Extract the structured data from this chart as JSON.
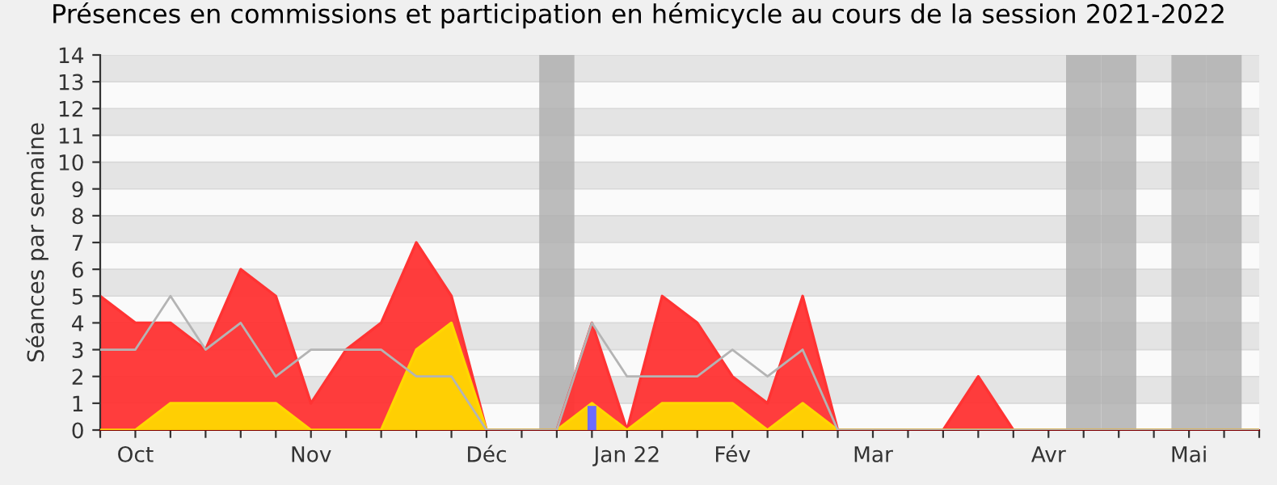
{
  "chart_data": {
    "type": "area",
    "title": "Présences en commissions et participation en hémicycle au cours de la session 2021-2022",
    "ylabel": "Séances par semaine",
    "categories": [
      null,
      "Oct",
      null,
      null,
      null,
      null,
      "Nov",
      null,
      null,
      null,
      null,
      "Déc",
      null,
      null,
      null,
      "Jan 22",
      null,
      null,
      "Fév",
      null,
      null,
      null,
      "Mar",
      null,
      null,
      null,
      null,
      "Avr",
      null,
      null,
      null,
      "Mai",
      null,
      null
    ],
    "series": [
      {
        "color": "#ff3333",
        "values": [
          5,
          4,
          4,
          3,
          6,
          5,
          1,
          3,
          4,
          7,
          5,
          0,
          0,
          0,
          4,
          0,
          5,
          4,
          2,
          1,
          5,
          0,
          0,
          0,
          0,
          2,
          0,
          0,
          0,
          0,
          0,
          0,
          0,
          0
        ]
      },
      {
        "color": "#ffd700",
        "values": [
          0,
          0,
          1,
          1,
          1,
          1,
          0,
          0,
          0,
          3,
          4,
          0,
          0,
          0,
          1,
          0,
          1,
          1,
          1,
          0,
          1,
          0,
          0,
          0,
          0,
          0,
          0,
          0,
          0,
          0,
          0,
          0,
          0,
          0
        ]
      },
      {
        "type": "line",
        "color": "#b4b4b4",
        "values": [
          3,
          3,
          5,
          3,
          4,
          2,
          3,
          3,
          3,
          2,
          2,
          0,
          0,
          0,
          4,
          2,
          2,
          2,
          3,
          2,
          3,
          0,
          0,
          0,
          0,
          0,
          0,
          0,
          0,
          0,
          0,
          0,
          0,
          0
        ]
      },
      {
        "type": "bar",
        "color": "#6b6bff",
        "values": [
          null,
          null,
          null,
          null,
          null,
          null,
          null,
          null,
          null,
          null,
          null,
          null,
          null,
          null,
          0.9,
          null,
          null,
          null,
          null,
          null,
          null,
          null,
          null,
          null,
          null,
          null,
          null,
          null,
          null,
          null,
          null,
          null,
          null,
          null
        ]
      },
      {
        "type": "bar",
        "color": "#b0b0b0",
        "values": [
          null,
          null,
          null,
          null,
          null,
          null,
          null,
          null,
          null,
          null,
          null,
          null,
          null,
          14,
          null,
          null,
          null,
          null,
          null,
          null,
          null,
          null,
          null,
          null,
          null,
          null,
          null,
          null,
          14,
          14,
          null,
          14,
          14,
          null
        ]
      }
    ],
    "ylim": [
      0,
      14
    ],
    "yticks": [
      0,
      1,
      2,
      3,
      4,
      5,
      6,
      7,
      8,
      9,
      10,
      11,
      12,
      13,
      14
    ],
    "grid": "y",
    "legend": false
  }
}
